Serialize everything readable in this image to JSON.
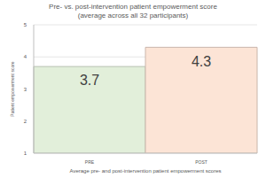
{
  "chart_data": {
    "type": "bar",
    "title": "Pre- vs. post-intervention patient empowerment score",
    "subtitle": "(average across all 32 participants)",
    "x_label": "Average pre- and post-intervention patient empowerment scores",
    "y_label": "Patient empowerment score",
    "categories": [
      "PRE",
      "POST"
    ],
    "values": [
      3.7,
      4.3
    ],
    "colors": [
      "#e2efda",
      "#fce4d6"
    ],
    "ylim": [
      1,
      5
    ],
    "yticks": [
      1,
      2,
      3,
      4,
      5
    ],
    "grid": true,
    "data_labels": true
  }
}
